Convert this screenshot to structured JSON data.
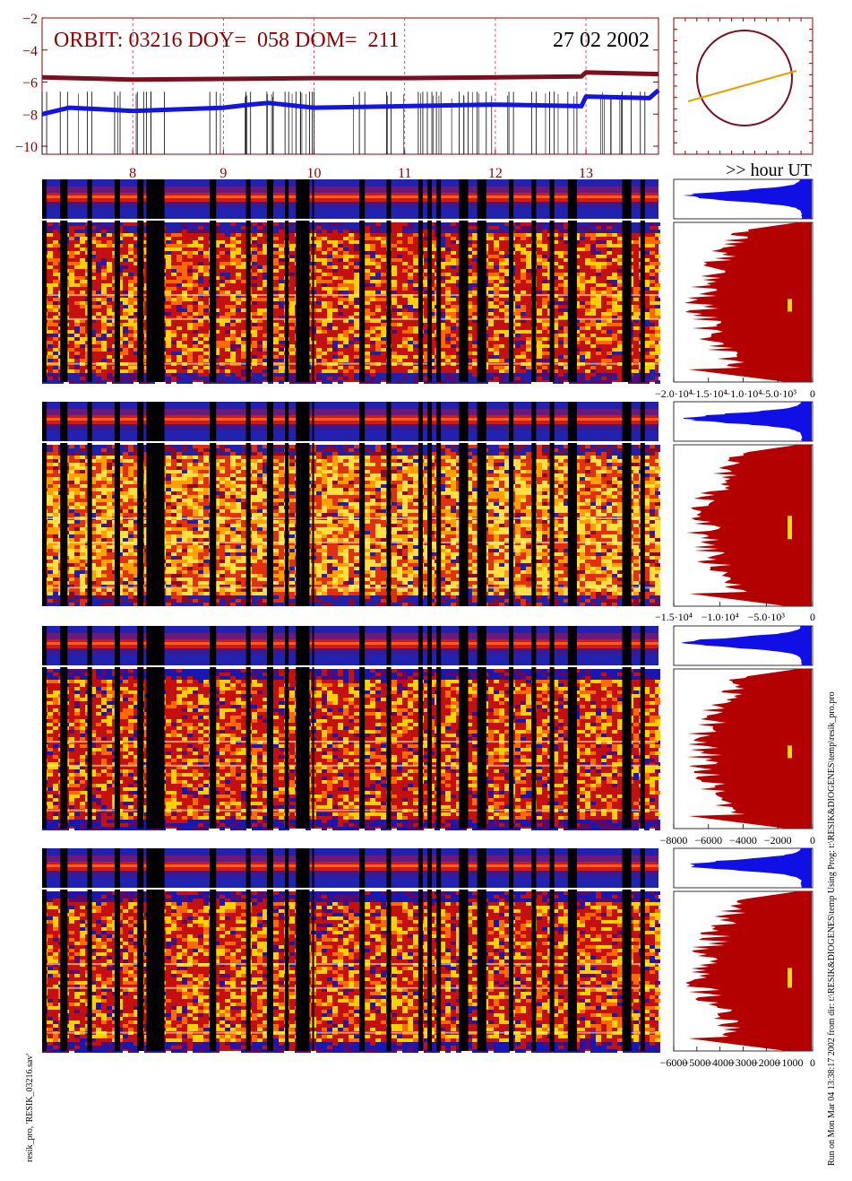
{
  "header": {
    "orbit_text": "ORBIT: 03216 DOY=  058 DOM=  211",
    "date_text": "27 02 2002",
    "hour_label": ">> hour UT"
  },
  "footer": {
    "left_note": "resik_pro, 'RESIK_03216.sav'",
    "right_note": "Run on Mon Mar 04 13:38:17 2002  from dir: t:\\RESIK&DIOGENES\\temp Using Prog: t:\\RESIK&DIOGENES\\temp\\resik_pro.pro"
  },
  "colors": {
    "title": "#8b0000",
    "dark_red": "#7a0f1e",
    "blue": "#1515e0",
    "hist_red": "#b30000",
    "hist_blue": "#1010e6",
    "orange": "#e8a000",
    "yellow": "#f0e000",
    "grid": "#b03060"
  },
  "chart_data": [
    {
      "type": "line",
      "panel": "timeline",
      "ylim": [
        -10.5,
        -2
      ],
      "yticks": [
        "-2",
        "-4",
        "-6",
        "-8",
        "-10"
      ],
      "xlim": [
        7.0,
        13.8
      ],
      "xticks": [
        "8",
        "9",
        "10",
        "11",
        "12",
        "13"
      ],
      "xlabel": ">> hour UT",
      "grid": "dashed vertical",
      "series": [
        {
          "color": "#7a0f1e",
          "x": [
            7.0,
            8.0,
            9.0,
            10.0,
            11.0,
            12.0,
            12.95,
            13.0,
            13.8
          ],
          "y": [
            -5.7,
            -5.85,
            -5.8,
            -5.75,
            -5.75,
            -5.7,
            -5.65,
            -5.4,
            -5.5
          ]
        },
        {
          "color": "#1515e0",
          "x": [
            7.0,
            7.3,
            8.0,
            9.0,
            9.3,
            9.5,
            10.0,
            11.0,
            12.0,
            12.95,
            13.0,
            13.7,
            13.8
          ],
          "y": [
            -8.0,
            -7.6,
            -7.8,
            -7.6,
            -7.4,
            -7.3,
            -7.6,
            -7.5,
            -7.4,
            -7.5,
            -6.9,
            -7.0,
            -6.5
          ]
        }
      ]
    },
    {
      "type": "scatter",
      "panel": "orbit-inset",
      "shape": "circle with orbit track line",
      "track_colors": [
        "#7a0f1e",
        "#e8a000"
      ]
    },
    {
      "type": "heatmap",
      "panel": "spectrograms",
      "count": 4,
      "colormap": "blue-red-yellow",
      "xlim": [
        7.0,
        13.8
      ],
      "gaps_hours": [
        [
          7.0,
          7.05
        ],
        [
          7.2,
          7.28
        ],
        [
          7.5,
          7.55
        ],
        [
          7.8,
          7.86
        ],
        [
          8.05,
          8.12
        ],
        [
          8.15,
          8.2
        ],
        [
          8.2,
          8.35
        ],
        [
          8.85,
          8.92
        ],
        [
          9.25,
          9.3
        ],
        [
          9.48,
          9.55
        ],
        [
          9.68,
          9.72
        ],
        [
          9.8,
          9.85
        ],
        [
          9.85,
          9.95
        ],
        [
          9.98,
          10.0
        ],
        [
          10.5,
          10.56
        ],
        [
          10.8,
          10.85
        ],
        [
          11.15,
          11.2
        ],
        [
          11.25,
          11.3
        ],
        [
          11.35,
          11.4
        ],
        [
          11.6,
          11.7
        ],
        [
          11.8,
          11.9
        ],
        [
          12.15,
          12.2
        ],
        [
          12.4,
          12.45
        ],
        [
          12.6,
          12.65
        ],
        [
          12.8,
          12.9
        ],
        [
          13.4,
          13.5
        ],
        [
          13.6,
          13.65
        ]
      ]
    },
    {
      "type": "area",
      "panel": "histograms",
      "count": 4,
      "x_ticklabels": [
        [
          "-2.0·10⁴",
          "-1.5·10⁴",
          "-1.0·10⁴",
          "-5.0·10³",
          "0"
        ],
        [
          "-1.5·10⁴",
          "-1.0·10⁴",
          "-5.0·10³",
          "0"
        ],
        [
          "-8000",
          "-6000",
          "-4000",
          "-2000",
          "0"
        ],
        [
          "-6000",
          "-5000",
          "-4000",
          "-3000",
          "-2000",
          "-1000",
          "0"
        ]
      ]
    }
  ]
}
